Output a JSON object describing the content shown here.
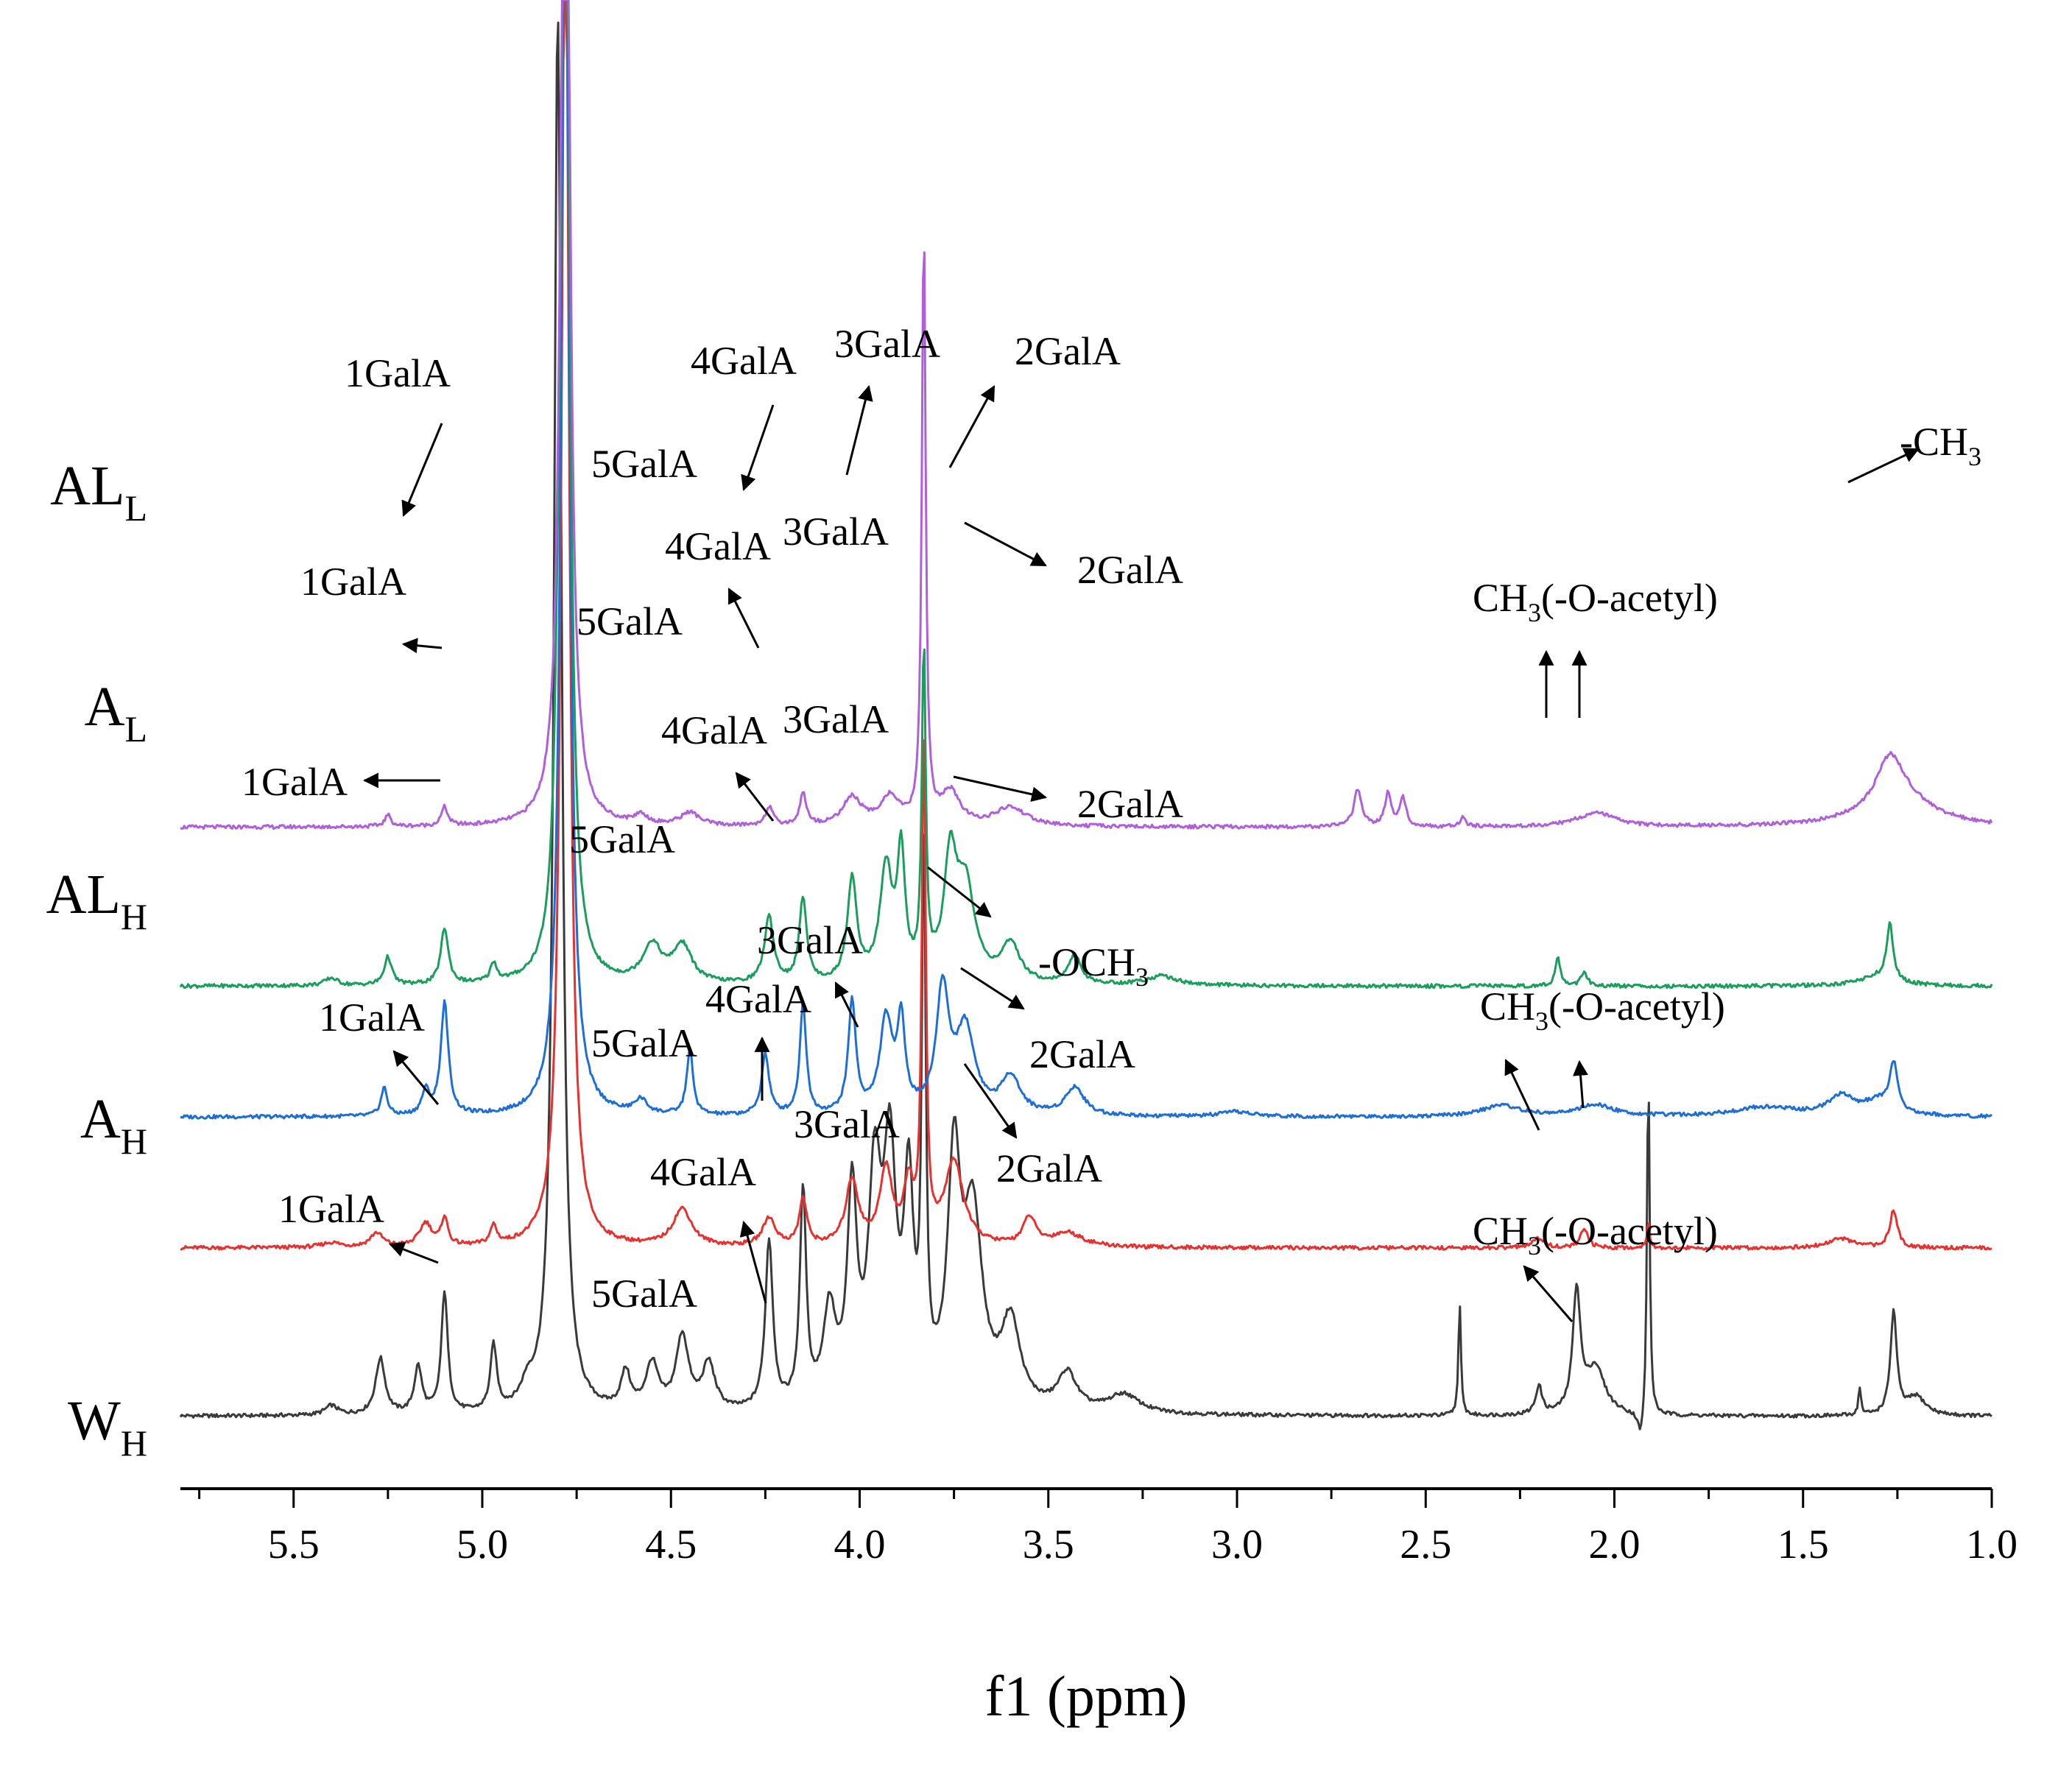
{
  "chart_data": {
    "type": "line",
    "title": "",
    "xlabel": "f1 (ppm)",
    "ylabel": "",
    "xlim": [
      5.8,
      1.0
    ],
    "x_reversed": true,
    "grid": false,
    "x_ticks": [
      "5.5",
      "5.0",
      "4.5",
      "4.0",
      "3.5",
      "3.0",
      "2.5",
      "2.0",
      "1.5",
      "1.0"
    ],
    "series": [
      {
        "name": "AL_L",
        "label_main": "AL",
        "label_sub": "L",
        "color": "#b05fdc",
        "baseline": 0.69,
        "peaks": [
          [
            5.25,
            0.012,
            0.01
          ],
          [
            5.1,
            0.02,
            0.01
          ],
          [
            4.78,
            1.5,
            0.012
          ],
          [
            4.58,
            0.01,
            0.02
          ],
          [
            4.45,
            0.014,
            0.03
          ],
          [
            4.24,
            0.02,
            0.012
          ],
          [
            4.15,
            0.035,
            0.01
          ],
          [
            4.02,
            0.03,
            0.03
          ],
          [
            3.92,
            0.03,
            0.03
          ],
          [
            3.83,
            0.64,
            0.006
          ],
          [
            3.76,
            0.035,
            0.03
          ],
          [
            3.6,
            0.02,
            0.05
          ],
          [
            2.68,
            0.04,
            0.012
          ],
          [
            2.6,
            0.035,
            0.01
          ],
          [
            2.56,
            0.03,
            0.01
          ],
          [
            2.4,
            0.01,
            0.008
          ],
          [
            2.05,
            0.015,
            0.06
          ],
          [
            1.27,
            0.045,
            0.04
          ],
          [
            1.25,
            0.035,
            0.1
          ]
        ]
      },
      {
        "name": "A_L",
        "label_main": "A",
        "label_sub": "L",
        "color": "#1a9e5c",
        "baseline": 0.52,
        "peaks": [
          [
            5.4,
            0.008,
            0.02
          ],
          [
            5.25,
            0.03,
            0.012
          ],
          [
            5.1,
            0.06,
            0.012
          ],
          [
            4.97,
            0.02,
            0.01
          ],
          [
            4.8,
            0.1,
            0.01
          ],
          [
            4.78,
            1.5,
            0.012
          ],
          [
            4.55,
            0.04,
            0.03
          ],
          [
            4.47,
            0.04,
            0.03
          ],
          [
            4.24,
            0.07,
            0.015
          ],
          [
            4.15,
            0.09,
            0.012
          ],
          [
            4.02,
            0.11,
            0.015
          ],
          [
            3.93,
            0.12,
            0.02
          ],
          [
            3.89,
            0.13,
            0.012
          ],
          [
            3.83,
            0.35,
            0.006
          ],
          [
            3.76,
            0.12,
            0.02
          ],
          [
            3.72,
            0.1,
            0.03
          ],
          [
            3.6,
            0.04,
            0.03
          ],
          [
            3.43,
            0.03,
            0.02
          ],
          [
            3.2,
            0.01,
            0.05
          ],
          [
            2.15,
            0.03,
            0.008
          ],
          [
            2.08,
            0.015,
            0.01
          ],
          [
            1.27,
            0.06,
            0.01
          ],
          [
            1.3,
            0.01,
            0.06
          ]
        ]
      },
      {
        "name": "AL_H",
        "label_main": "AL",
        "label_sub": "H",
        "color": "#1d6ed8",
        "baseline": 0.38,
        "peaks": [
          [
            5.26,
            0.03,
            0.01
          ],
          [
            5.15,
            0.025,
            0.012
          ],
          [
            5.1,
            0.12,
            0.012
          ],
          [
            4.78,
            1.5,
            0.012
          ],
          [
            4.58,
            0.015,
            0.02
          ],
          [
            4.45,
            0.07,
            0.01
          ],
          [
            4.25,
            0.065,
            0.012
          ],
          [
            4.15,
            0.12,
            0.01
          ],
          [
            4.02,
            0.12,
            0.012
          ],
          [
            3.93,
            0.1,
            0.02
          ],
          [
            3.89,
            0.095,
            0.012
          ],
          [
            3.78,
            0.13,
            0.02
          ],
          [
            3.72,
            0.09,
            0.03
          ],
          [
            3.6,
            0.04,
            0.03
          ],
          [
            3.43,
            0.03,
            0.03
          ],
          [
            3.0,
            0.005,
            0.05
          ],
          [
            2.3,
            0.012,
            0.06
          ],
          [
            2.05,
            0.012,
            0.06
          ],
          [
            1.6,
            0.01,
            0.1
          ],
          [
            1.4,
            0.02,
            0.04
          ],
          [
            1.26,
            0.05,
            0.012
          ],
          [
            1.3,
            0.015,
            0.05
          ]
        ]
      },
      {
        "name": "A_H",
        "label_main": "A",
        "label_sub": "H",
        "color": "#e8312f",
        "baseline": 0.24,
        "peaks": [
          [
            5.4,
            0.005,
            0.03
          ],
          [
            5.28,
            0.015,
            0.02
          ],
          [
            5.15,
            0.025,
            0.02
          ],
          [
            5.1,
            0.03,
            0.01
          ],
          [
            4.97,
            0.02,
            0.01
          ],
          [
            4.78,
            1.5,
            0.012
          ],
          [
            4.47,
            0.04,
            0.03
          ],
          [
            4.24,
            0.03,
            0.02
          ],
          [
            4.15,
            0.05,
            0.012
          ],
          [
            4.02,
            0.07,
            0.02
          ],
          [
            3.93,
            0.08,
            0.02
          ],
          [
            3.87,
            0.06,
            0.015
          ],
          [
            3.83,
            0.55,
            0.006
          ],
          [
            3.75,
            0.09,
            0.03
          ],
          [
            3.55,
            0.03,
            0.02
          ],
          [
            3.45,
            0.015,
            0.05
          ],
          [
            2.2,
            0.01,
            0.02
          ],
          [
            2.08,
            0.02,
            0.012
          ],
          [
            1.91,
            0.03,
            0.004
          ],
          [
            1.4,
            0.01,
            0.04
          ],
          [
            1.26,
            0.04,
            0.012
          ]
        ]
      },
      {
        "name": "W_H",
        "label_main": "W",
        "label_sub": "H",
        "color": "#3a3a3a",
        "baseline": 0.06,
        "peaks": [
          [
            5.4,
            0.01,
            0.02
          ],
          [
            5.27,
            0.06,
            0.015
          ],
          [
            5.17,
            0.05,
            0.012
          ],
          [
            5.1,
            0.13,
            0.01
          ],
          [
            4.97,
            0.07,
            0.01
          ],
          [
            4.88,
            0.02,
            0.02
          ],
          [
            4.8,
            1.5,
            0.012
          ],
          [
            4.62,
            0.04,
            0.015
          ],
          [
            4.55,
            0.05,
            0.02
          ],
          [
            4.47,
            0.08,
            0.02
          ],
          [
            4.4,
            0.05,
            0.02
          ],
          [
            4.24,
            0.18,
            0.012
          ],
          [
            4.15,
            0.23,
            0.01
          ],
          [
            4.08,
            0.1,
            0.02
          ],
          [
            4.02,
            0.22,
            0.015
          ],
          [
            3.96,
            0.23,
            0.02
          ],
          [
            3.92,
            0.25,
            0.02
          ],
          [
            3.87,
            0.22,
            0.015
          ],
          [
            3.83,
            0.58,
            0.006
          ],
          [
            3.75,
            0.25,
            0.02
          ],
          [
            3.7,
            0.2,
            0.03
          ],
          [
            3.6,
            0.09,
            0.03
          ],
          [
            3.45,
            0.04,
            0.03
          ],
          [
            3.3,
            0.02,
            0.05
          ],
          [
            2.41,
            0.12,
            0.004
          ],
          [
            2.2,
            0.03,
            0.01
          ],
          [
            2.1,
            0.13,
            0.012
          ],
          [
            2.05,
            0.05,
            0.03
          ],
          [
            1.91,
            0.38,
            0.004
          ],
          [
            1.93,
            -0.03,
            0.01
          ],
          [
            1.35,
            0.03,
            0.004
          ],
          [
            1.26,
            0.11,
            0.01
          ],
          [
            1.2,
            0.02,
            0.03
          ]
        ]
      }
    ],
    "annotations": [
      {
        "name": "1GalA",
        "series": "AL_L",
        "text": "1GalA"
      },
      {
        "name": "5GalA",
        "series": "AL_L",
        "text": "5GalA"
      },
      {
        "name": "4GalA",
        "series": "AL_L",
        "text": "4GalA"
      },
      {
        "name": "3GalA",
        "series": "AL_L",
        "text": "3GalA"
      },
      {
        "name": "2GalA",
        "series": "AL_L",
        "text": "2GalA"
      },
      {
        "name": "CH3",
        "series": "AL_L",
        "text": "-CH",
        "sub": "3"
      },
      {
        "name": "1GalA",
        "series": "A_L",
        "text": "1GalA"
      },
      {
        "name": "5GalA",
        "series": "A_L",
        "text": "5GalA"
      },
      {
        "name": "4GalA",
        "series": "A_L",
        "text": "4GalA"
      },
      {
        "name": "3GalA",
        "series": "A_L",
        "text": "3GalA"
      },
      {
        "name": "2GalA",
        "series": "A_L",
        "text": "2GalA"
      },
      {
        "name": "acetyl",
        "series": "A_L",
        "text": "CH",
        "sub": "3",
        "tail": "(-O-acetyl)"
      },
      {
        "name": "1GalA",
        "series": "AL_H",
        "text": "1GalA"
      },
      {
        "name": "5GalA",
        "series": "AL_H",
        "text": "5GalA"
      },
      {
        "name": "4GalA",
        "series": "AL_H",
        "text": "4GalA"
      },
      {
        "name": "3GalA",
        "series": "AL_H",
        "text": "3GalA"
      },
      {
        "name": "2GalA",
        "series": "AL_H",
        "text": "2GalA"
      },
      {
        "name": "OCH3",
        "series": "AL_H",
        "text": "-OCH",
        "sub": "3"
      },
      {
        "name": "1GalA",
        "series": "A_H",
        "text": "1GalA"
      },
      {
        "name": "5GalA",
        "series": "A_H",
        "text": "5GalA"
      },
      {
        "name": "4GalA",
        "series": "A_H",
        "text": "4GalA"
      },
      {
        "name": "3GalA",
        "series": "A_H",
        "text": "3GalA"
      },
      {
        "name": "2GalA",
        "series": "A_H",
        "text": "2GalA"
      },
      {
        "name": "acetyl",
        "series": "A_H",
        "text": "CH",
        "sub": "3",
        "tail": "(-O-acetyl)"
      },
      {
        "name": "1GalA",
        "series": "W_H",
        "text": "1GalA"
      },
      {
        "name": "5GalA",
        "series": "W_H",
        "text": "5GalA"
      },
      {
        "name": "4GalA",
        "series": "W_H",
        "text": "4GalA"
      },
      {
        "name": "3GalA",
        "series": "W_H",
        "text": "3GalA"
      },
      {
        "name": "2GalA",
        "series": "W_H",
        "text": "2GalA"
      },
      {
        "name": "acetyl",
        "series": "W_H",
        "text": "CH",
        "sub": "3",
        "tail": "(-O-acetyl)"
      }
    ]
  }
}
